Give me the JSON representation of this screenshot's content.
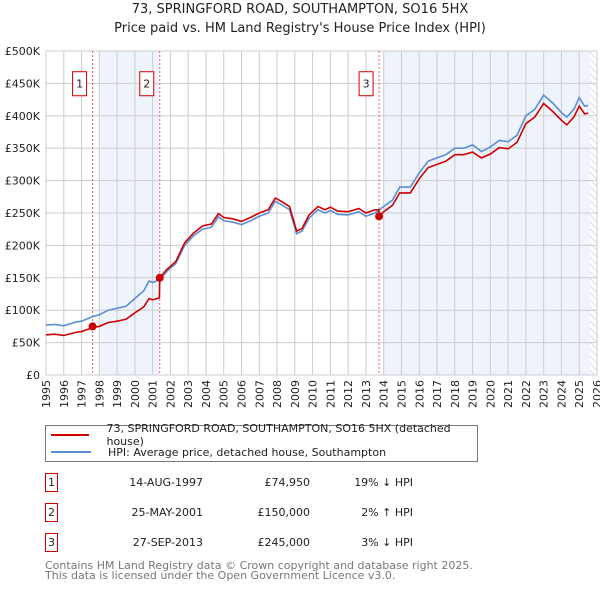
{
  "chart_data": {
    "type": "line",
    "title": "73, SPRINGFORD ROAD, SOUTHAMPTON, SO16 5HX",
    "subtitle": "Price paid vs. HM Land Registry's House Price Index (HPI)",
    "xlim": [
      1995,
      2026
    ],
    "ylim": [
      0,
      500
    ],
    "x_ticks": [
      "1995",
      "1996",
      "1997",
      "1998",
      "1999",
      "2000",
      "2001",
      "2002",
      "2003",
      "2004",
      "2005",
      "2006",
      "2007",
      "2008",
      "2009",
      "2010",
      "2011",
      "2012",
      "2013",
      "2014",
      "2015",
      "2016",
      "2017",
      "2018",
      "2019",
      "2020",
      "2021",
      "2022",
      "2023",
      "2024",
      "2025",
      "2026"
    ],
    "y_ticks": [
      {
        "v": 0,
        "label": "£0"
      },
      {
        "v": 50,
        "label": "£50K"
      },
      {
        "v": 100,
        "label": "£100K"
      },
      {
        "v": 150,
        "label": "£150K"
      },
      {
        "v": 200,
        "label": "£200K"
      },
      {
        "v": 250,
        "label": "£250K"
      },
      {
        "v": 300,
        "label": "£300K"
      },
      {
        "v": 350,
        "label": "£350K"
      },
      {
        "v": 400,
        "label": "£400K"
      },
      {
        "v": 450,
        "label": "£450K"
      },
      {
        "v": 500,
        "label": "£500K"
      }
    ],
    "grid": true,
    "shaded_ranges": [
      [
        1998,
        2001.4
      ],
      [
        2014,
        2025.6
      ]
    ],
    "hatched_from": 2025.6,
    "series": [
      {
        "name": "73, SPRINGFORD ROAD, SOUTHAMPTON, SO16 5HX (detached house)",
        "color": "#cc0000",
        "x": [
          1995,
          1995.5,
          1996,
          1996.7,
          1997,
          1997.6,
          1998,
          1998.5,
          1999,
          1999.5,
          2000,
          2000.5,
          2000.8,
          2001,
          2001.38,
          2001.4,
          2001.8,
          2002.3,
          2002.8,
          2003.3,
          2003.8,
          2004.3,
          2004.7,
          2005,
          2005.5,
          2006,
          2006.5,
          2007,
          2007.5,
          2007.9,
          2008.3,
          2008.7,
          2009.1,
          2009.4,
          2009.8,
          2010.3,
          2010.7,
          2011,
          2011.4,
          2012,
          2012.6,
          2013,
          2013.5,
          2013.73,
          2013.75,
          2014,
          2014.5,
          2014.9,
          2015.5,
          2016,
          2016.5,
          2017,
          2017.5,
          2018,
          2018.5,
          2019,
          2019.5,
          2020,
          2020.5,
          2021,
          2021.5,
          2022,
          2022.5,
          2023,
          2023.5,
          2024,
          2024.3,
          2024.7,
          2025,
          2025.3,
          2025.5
        ],
        "y": [
          62,
          63,
          61,
          66,
          67,
          73,
          75,
          81,
          83,
          86,
          96,
          105,
          118,
          116,
          119,
          150,
          163,
          175,
          204,
          219,
          230,
          233,
          249,
          243,
          241,
          237,
          243,
          250,
          255,
          273,
          267,
          260,
          222,
          226,
          247,
          260,
          255,
          259,
          253,
          252,
          257,
          250,
          255,
          255,
          245,
          252,
          262,
          281,
          281,
          303,
          320,
          325,
          330,
          340,
          340,
          344,
          335,
          341,
          351,
          349,
          359,
          388,
          398,
          419,
          407,
          393,
          386,
          398,
          415,
          403,
          404
        ]
      },
      {
        "name": "HPI: Average price, detached house, Southampton",
        "color": "#5b8fd4",
        "x": [
          1995,
          1995.5,
          1996,
          1996.7,
          1997,
          1997.6,
          1998,
          1998.5,
          1999,
          1999.5,
          2000,
          2000.5,
          2000.8,
          2001,
          2001.4,
          2001.8,
          2002.3,
          2002.8,
          2003.3,
          2003.8,
          2004.3,
          2004.7,
          2005,
          2005.5,
          2006,
          2006.5,
          2007,
          2007.5,
          2007.9,
          2008.3,
          2008.7,
          2009.1,
          2009.4,
          2009.8,
          2010.3,
          2010.7,
          2011,
          2011.4,
          2012,
          2012.6,
          2013,
          2013.5,
          2014,
          2014.5,
          2014.9,
          2015.5,
          2016,
          2016.5,
          2017,
          2017.5,
          2018,
          2018.5,
          2019,
          2019.5,
          2020,
          2020.5,
          2021,
          2021.5,
          2022,
          2022.5,
          2023,
          2023.5,
          2024,
          2024.3,
          2024.7,
          2025,
          2025.3,
          2025.5
        ],
        "y": [
          77,
          78,
          76,
          82,
          83,
          90,
          93,
          100,
          103,
          106,
          118,
          130,
          145,
          143,
          147,
          160,
          172,
          200,
          215,
          225,
          228,
          244,
          238,
          236,
          232,
          238,
          245,
          250,
          268,
          262,
          255,
          218,
          222,
          242,
          255,
          250,
          254,
          248,
          247,
          252,
          245,
          250,
          260,
          270,
          290,
          290,
          312,
          330,
          335,
          340,
          350,
          350,
          355,
          345,
          352,
          362,
          360,
          370,
          400,
          410,
          432,
          420,
          405,
          398,
          410,
          428,
          415,
          416
        ]
      }
    ],
    "sales": [
      {
        "num": "1",
        "x": 1997.62,
        "y": 74.95,
        "date": "14-AUG-1997",
        "price": "£74,950",
        "hpi": "19% ↓ HPI"
      },
      {
        "num": "2",
        "x": 2001.4,
        "y": 150,
        "date": "25-MAY-2001",
        "price": "£150,000",
        "hpi": "2% ↑ HPI"
      },
      {
        "num": "3",
        "x": 2013.74,
        "y": 245,
        "date": "27-SEP-2013",
        "price": "£245,000",
        "hpi": "3% ↓ HPI"
      }
    ]
  },
  "footer": {
    "line1": "Contains HM Land Registry data © Crown copyright and database right 2025.",
    "line2": "This data is licensed under the Open Government Licence v3.0."
  }
}
